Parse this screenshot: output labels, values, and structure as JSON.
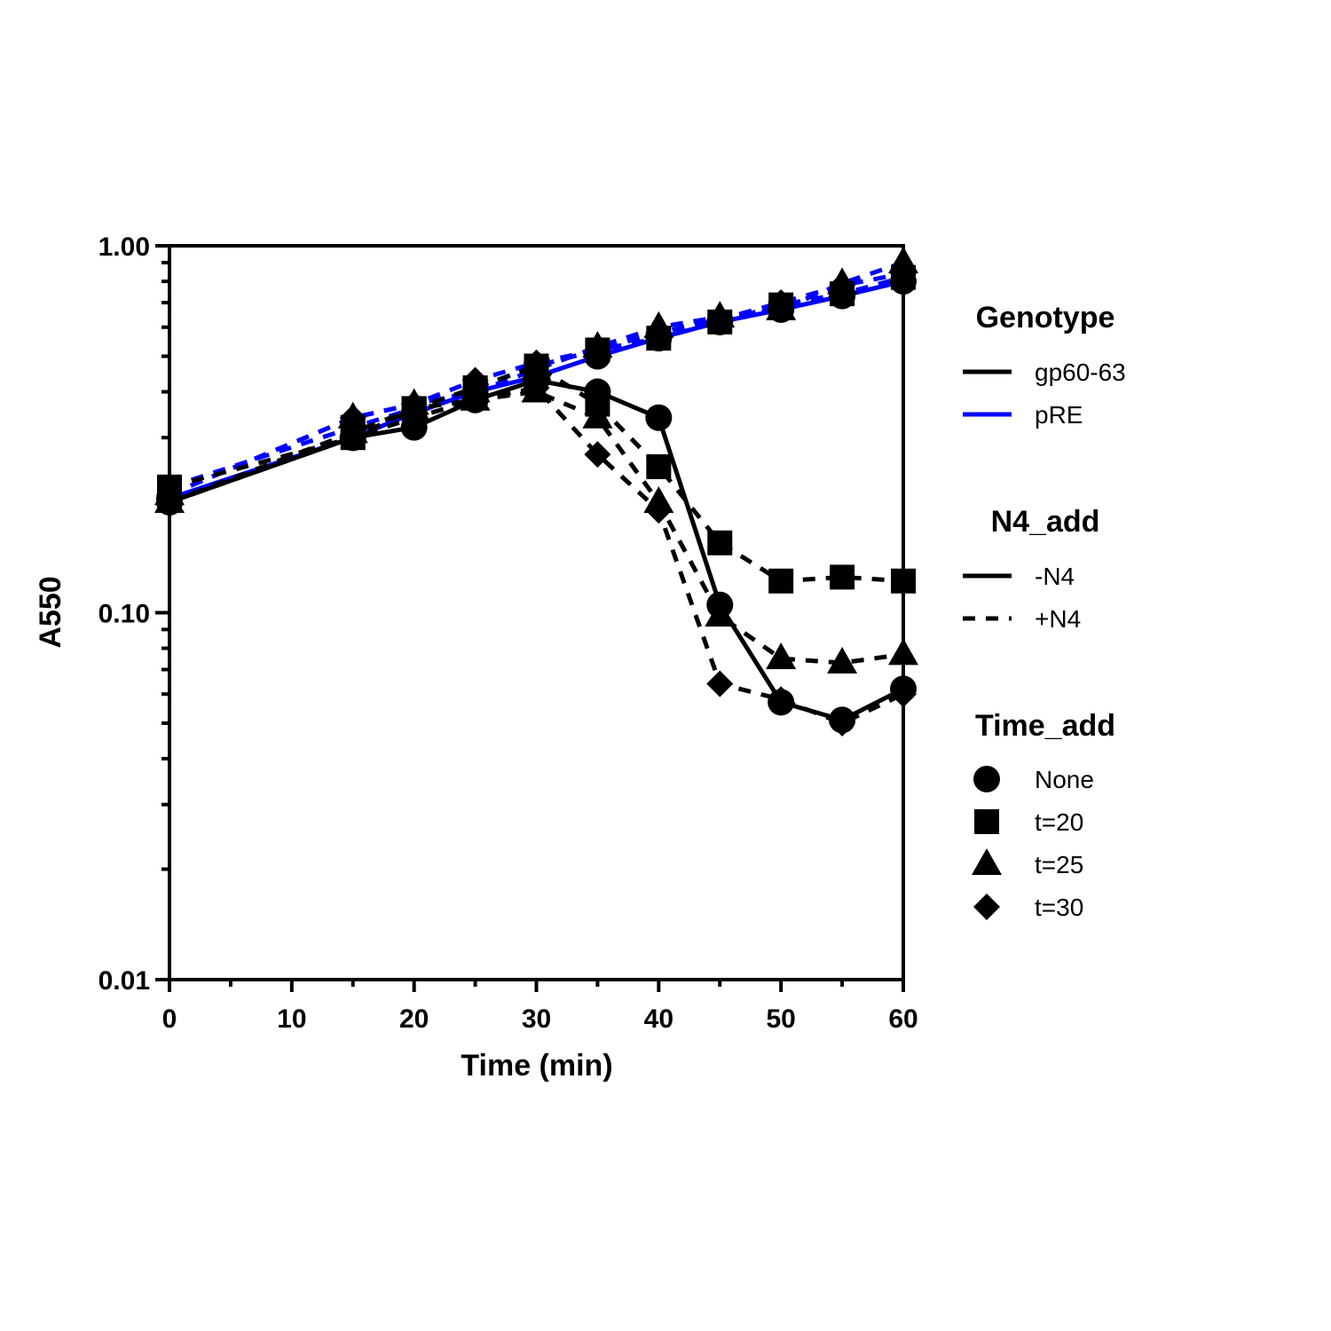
{
  "chart_data": {
    "type": "line",
    "xlabel": "Time (min)",
    "ylabel": "A550",
    "xlim": [
      0,
      60
    ],
    "ylim": [
      0.01,
      1.0
    ],
    "yscale": "log",
    "grid": false,
    "x_ticks": [
      0,
      10,
      20,
      30,
      40,
      50,
      60
    ],
    "x_tick_labels": [
      "0",
      "10",
      "20",
      "30",
      "40",
      "50",
      "60"
    ],
    "y_ticks": [
      0.01,
      0.1,
      1.0
    ],
    "y_tick_labels": [
      "0.01",
      "0.10",
      "1.00"
    ],
    "legend_placement": "right",
    "legend": [
      {
        "title": "Genotype",
        "items": [
          {
            "label": "gp60-63",
            "kind": "line",
            "color": "#000000",
            "dash": "solid"
          },
          {
            "label": "pRE",
            "kind": "line",
            "color": "#0000ff",
            "dash": "solid"
          }
        ]
      },
      {
        "title": "N4_add",
        "items": [
          {
            "label": "-N4",
            "kind": "line",
            "color": "#000000",
            "dash": "solid"
          },
          {
            "label": "+N4",
            "kind": "line",
            "color": "#000000",
            "dash": "dashed"
          }
        ]
      },
      {
        "title": "Time_add",
        "items": [
          {
            "label": "None",
            "kind": "marker",
            "marker": "circle"
          },
          {
            "label": "t=20",
            "kind": "marker",
            "marker": "square"
          },
          {
            "label": "t=25",
            "kind": "marker",
            "marker": "triangle"
          },
          {
            "label": "t=30",
            "kind": "marker",
            "marker": "diamond"
          }
        ]
      }
    ],
    "series": [
      {
        "genotype": "pRE",
        "n4": "-N4",
        "time_add": "None",
        "color": "#0000ff",
        "dash": "solid",
        "marker": "circle",
        "x": [
          0,
          15,
          20,
          25,
          30,
          35,
          40,
          45,
          50,
          55,
          60
        ],
        "y": [
          0.205,
          0.3,
          0.35,
          0.4,
          0.44,
          0.5,
          0.56,
          0.62,
          0.67,
          0.73,
          0.8
        ]
      },
      {
        "genotype": "pRE",
        "n4": "+N4",
        "time_add": "t=20",
        "color": "#0000ff",
        "dash": "dashed",
        "marker": "square",
        "x": [
          0,
          15,
          20,
          25,
          30,
          35,
          40,
          45,
          50,
          55,
          60
        ],
        "y": [
          0.22,
          0.32,
          0.36,
          0.41,
          0.47,
          0.52,
          0.56,
          0.62,
          0.69,
          0.74,
          0.82
        ]
      },
      {
        "genotype": "pRE",
        "n4": "+N4",
        "time_add": "t=25",
        "color": "#0000ff",
        "dash": "dashed",
        "marker": "triangle",
        "x": [
          0,
          15,
          20,
          25,
          30,
          35,
          40,
          45,
          50,
          55,
          60
        ],
        "y": [
          0.21,
          0.34,
          0.37,
          0.4,
          0.46,
          0.53,
          0.6,
          0.64,
          0.67,
          0.79,
          0.9
        ]
      },
      {
        "genotype": "pRE",
        "n4": "+N4",
        "time_add": "t=30",
        "color": "#0000ff",
        "dash": "dashed",
        "marker": "diamond",
        "x": [
          0,
          15,
          20,
          25,
          30,
          35,
          40,
          45,
          50,
          55,
          60
        ],
        "y": [
          0.21,
          0.34,
          0.37,
          0.43,
          0.48,
          0.52,
          0.58,
          0.63,
          0.7,
          0.78,
          0.84
        ]
      },
      {
        "genotype": "gp60-63",
        "n4": "-N4",
        "time_add": "None",
        "color": "#000000",
        "dash": "solid",
        "marker": "circle",
        "x": [
          0,
          15,
          20,
          25,
          30,
          35,
          40,
          45,
          50,
          55,
          60
        ],
        "y": [
          0.2,
          0.3,
          0.32,
          0.38,
          0.43,
          0.4,
          0.34,
          0.105,
          0.057,
          0.051,
          0.062
        ]
      },
      {
        "genotype": "gp60-63",
        "n4": "+N4",
        "time_add": "t=20",
        "color": "#000000",
        "dash": "dashed",
        "marker": "square",
        "x": [
          0,
          15,
          20,
          25,
          30,
          35,
          40,
          45,
          50,
          55,
          60
        ],
        "y": [
          0.22,
          0.3,
          0.36,
          0.41,
          0.47,
          0.37,
          0.25,
          0.155,
          0.122,
          0.125,
          0.122
        ]
      },
      {
        "genotype": "gp60-63",
        "n4": "+N4",
        "time_add": "t=25",
        "color": "#000000",
        "dash": "dashed",
        "marker": "triangle",
        "x": [
          0,
          15,
          20,
          25,
          30,
          35,
          40,
          45,
          50,
          55,
          60
        ],
        "y": [
          0.2,
          0.31,
          0.36,
          0.38,
          0.4,
          0.34,
          0.2,
          0.098,
          0.075,
          0.073,
          0.077
        ]
      },
      {
        "genotype": "gp60-63",
        "n4": "+N4",
        "time_add": "t=30",
        "color": "#000000",
        "dash": "dashed",
        "marker": "diamond",
        "x": [
          0,
          15,
          20,
          25,
          30,
          35,
          40,
          45,
          50,
          55,
          60
        ],
        "y": [
          0.2,
          0.3,
          0.34,
          0.38,
          0.41,
          0.27,
          0.19,
          0.064,
          0.058,
          0.05,
          0.06
        ]
      }
    ]
  }
}
